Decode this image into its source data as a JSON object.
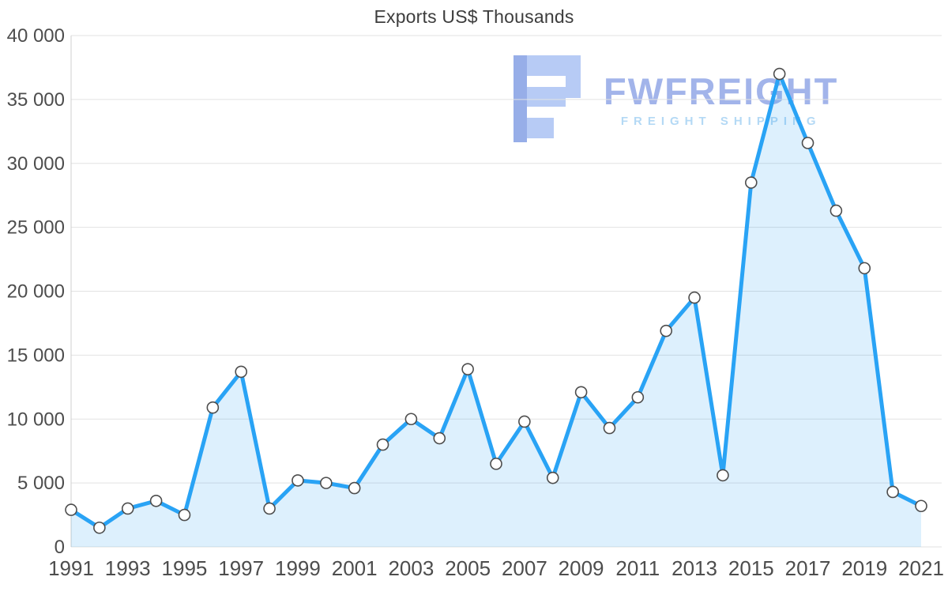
{
  "title": "Exports US$ Thousands",
  "watermark": {
    "brand": "FWFREIGHT",
    "subtitle": "FREIGHT SHIPPING",
    "brand_color": "#a2b4ea",
    "subtitle_color": "#b4d9f5",
    "logo_color_main": "#b7cbf5",
    "logo_color_dark": "#97aee8"
  },
  "chart_data": {
    "type": "area",
    "title": "Exports US$ Thousands",
    "xlabel": "",
    "ylabel": "",
    "x": [
      1991,
      1992,
      1993,
      1994,
      1995,
      1996,
      1997,
      1998,
      1999,
      2000,
      2001,
      2002,
      2003,
      2004,
      2005,
      2006,
      2007,
      2008,
      2009,
      2010,
      2011,
      2012,
      2013,
      2014,
      2015,
      2016,
      2017,
      2018,
      2019,
      2020,
      2021
    ],
    "values": [
      2900,
      1500,
      3000,
      3600,
      2500,
      10900,
      13700,
      3000,
      5200,
      5000,
      4600,
      8000,
      10000,
      8500,
      13900,
      6500,
      9800,
      5400,
      12100,
      9300,
      11700,
      16900,
      19500,
      5600,
      28500,
      37000,
      31600,
      26300,
      21800,
      4300,
      3200
    ],
    "ylim": [
      0,
      40000
    ],
    "ytick_step": 5000,
    "ytick_labels": [
      "0",
      "5 000",
      "10 000",
      "15 000",
      "20 000",
      "25 000",
      "30 000",
      "35 000",
      "40 000"
    ],
    "xtick_labels": [
      "1991",
      "1993",
      "1995",
      "1997",
      "1999",
      "2001",
      "2003",
      "2005",
      "2007",
      "2009",
      "2011",
      "2013",
      "2015",
      "2017",
      "2019",
      "2021"
    ],
    "xtick_every": 2,
    "grid": true,
    "legend": "none",
    "line_color": "#29a3f5",
    "fill_color": "rgba(41,163,245,0.16)",
    "marker_fill": "#ffffff",
    "marker_stroke": "#4d4d4d",
    "grid_color": "#e2e2e2",
    "axis_color": "#cfcfcf"
  }
}
